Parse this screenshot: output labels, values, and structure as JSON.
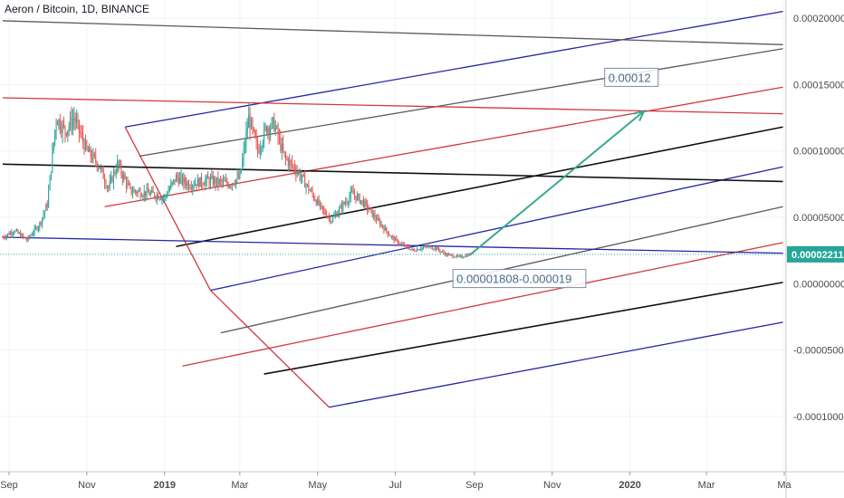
{
  "title": "Aeron / Bitcoin, 1D, BINANCE",
  "colors": {
    "up": "#26a69a",
    "down": "#ef5350",
    "price_tag": "#26a69a",
    "blue": "#2626a6",
    "red": "#d0393e",
    "gray": "#5a5a5a",
    "black": "#111111",
    "arrow": "#3aa88e"
  },
  "chart_data": {
    "type": "candlestick",
    "title": "Aeron / Bitcoin, 1D, BINANCE",
    "symbol": "Aeron / Bitcoin",
    "interval": "1D",
    "exchange": "BINANCE",
    "last_price": "0.00002211",
    "ylim": [
      -0.00012,
      0.00021
    ],
    "y_tick_labels": [
      "0.00020000",
      "0.00015000",
      "0.00010000",
      "0.00005000",
      "0.00000000",
      "-0.00005000",
      "-0.00010000"
    ],
    "y_ticks": [
      0.0002,
      0.00015,
      0.0001,
      5e-05,
      0.0,
      -5e-05,
      -0.0001
    ],
    "x_tick_labels": [
      "Sep",
      "Nov",
      "2019",
      "Mar",
      "May",
      "Jul",
      "Sep",
      "Nov",
      "2020",
      "Mar",
      "Ma"
    ],
    "x_ticks": [
      "2018-09-01",
      "2018-11-01",
      "2019-01-01",
      "2019-03-01",
      "2019-05-01",
      "2019-07-01",
      "2019-09-01",
      "2019-11-01",
      "2020-01-01",
      "2020-03-01",
      "2020-05-01"
    ],
    "price_path": [
      [
        "2018-08-27",
        3.5e-05
      ],
      [
        "2018-09-05",
        4e-05
      ],
      [
        "2018-09-15",
        3.3e-05
      ],
      [
        "2018-09-25",
        4.5e-05
      ],
      [
        "2018-10-01",
        6e-05
      ],
      [
        "2018-10-08",
        0.000125
      ],
      [
        "2018-10-15",
        0.000115
      ],
      [
        "2018-10-22",
        0.000125
      ],
      [
        "2018-11-01",
        0.0001
      ],
      [
        "2018-11-10",
        9e-05
      ],
      [
        "2018-11-18",
        7.2e-05
      ],
      [
        "2018-11-25",
        9e-05
      ],
      [
        "2018-12-05",
        7e-05
      ],
      [
        "2018-12-20",
        6.8e-05
      ],
      [
        "2019-01-01",
        6.5e-05
      ],
      [
        "2019-01-10",
        8e-05
      ],
      [
        "2019-01-20",
        7.5e-05
      ],
      [
        "2019-02-05",
        7.8e-05
      ],
      [
        "2019-02-20",
        7.5e-05
      ],
      [
        "2019-03-01",
        8e-05
      ],
      [
        "2019-03-08",
        0.000125
      ],
      [
        "2019-03-15",
        0.0001
      ],
      [
        "2019-03-22",
        0.000118
      ],
      [
        "2019-03-28",
        0.00012
      ],
      [
        "2019-04-05",
        9.5e-05
      ],
      [
        "2019-04-15",
        8.5e-05
      ],
      [
        "2019-04-25",
        7e-05
      ],
      [
        "2019-05-05",
        5.5e-05
      ],
      [
        "2019-05-12",
        4.8e-05
      ],
      [
        "2019-05-20",
        5.8e-05
      ],
      [
        "2019-05-28",
        6.8e-05
      ],
      [
        "2019-06-05",
        6.2e-05
      ],
      [
        "2019-06-15",
        5e-05
      ],
      [
        "2019-06-28",
        3.5e-05
      ],
      [
        "2019-07-05",
        3e-05
      ],
      [
        "2019-07-15",
        2.5e-05
      ],
      [
        "2019-07-25",
        2.8e-05
      ],
      [
        "2019-08-01",
        2.7e-05
      ],
      [
        "2019-08-10",
        2.2e-05
      ],
      [
        "2019-08-20",
        2e-05
      ],
      [
        "2019-08-29",
        2.21e-05
      ]
    ],
    "trend_lines": [
      {
        "name": "upper blue",
        "color": "blue",
        "from": [
          "2018-12-01",
          0.000118
        ],
        "to": [
          "2020-04-30",
          0.000205
        ]
      },
      {
        "name": "upper gray",
        "color": "gray",
        "from": [
          "2018-12-12",
          9.6e-05
        ],
        "to": [
          "2020-04-30",
          0.000177
        ]
      },
      {
        "name": "upper red",
        "color": "red",
        "from": [
          "2018-11-15",
          5.8e-05
        ],
        "to": [
          "2020-04-30",
          0.000148
        ]
      },
      {
        "name": "middle black",
        "color": "black",
        "from": [
          "2019-01-10",
          2.8e-05
        ],
        "to": [
          "2020-04-30",
          0.000118
        ]
      },
      {
        "name": "median blue",
        "color": "blue",
        "from": [
          "2019-02-06",
          -5e-06
        ],
        "to": [
          "2020-04-30",
          8.8e-05
        ]
      },
      {
        "name": "lower gray",
        "color": "gray",
        "from": [
          "2019-02-14",
          -3.7e-05
        ],
        "to": [
          "2020-04-30",
          5.8e-05
        ]
      },
      {
        "name": "lower red",
        "color": "red",
        "from": [
          "2019-01-15",
          -6.2e-05
        ],
        "to": [
          "2020-04-30",
          3.1e-05
        ]
      },
      {
        "name": "lower black",
        "color": "black",
        "from": [
          "2019-03-20",
          -6.8e-05
        ],
        "to": [
          "2020-04-30",
          1e-06
        ]
      },
      {
        "name": "lowest blue",
        "color": "blue",
        "from": [
          "2019-05-10",
          -9.3e-05
        ],
        "to": [
          "2020-04-30",
          -2.9e-05
        ]
      },
      {
        "name": "handle top",
        "color": "red",
        "from": [
          "2018-12-01",
          0.000118
        ],
        "to": [
          "2019-02-06",
          -5e-06
        ]
      },
      {
        "name": "handle bottom",
        "color": "red",
        "from": [
          "2019-02-06",
          -5e-06
        ],
        "to": [
          "2019-05-10",
          -9.3e-05
        ]
      },
      {
        "name": "horizontal dark gray",
        "color": "gray",
        "from": [
          "2018-08-27",
          0.000198
        ],
        "to": [
          "2020-04-30",
          0.00018
        ]
      },
      {
        "name": "horizontal red",
        "color": "red",
        "from": [
          "2018-08-27",
          0.00014
        ],
        "to": [
          "2020-04-30",
          0.000128
        ]
      },
      {
        "name": "horizontal black",
        "color": "black",
        "from": [
          "2018-08-27",
          9e-05
        ],
        "to": [
          "2020-04-30",
          7.7e-05
        ]
      },
      {
        "name": "horizontal blue",
        "color": "blue",
        "from": [
          "2018-08-27",
          3.5e-05
        ],
        "to": [
          "2020-04-30",
          2.3e-05
        ]
      }
    ],
    "arrow": {
      "from": [
        "2019-08-29",
        2.21e-05
      ],
      "to": [
        "2020-01-12",
        0.00013
      ]
    },
    "annotations": [
      {
        "text": "0.00012",
        "at": [
          "2019-12-15",
          0.000152
        ]
      },
      {
        "text": "0.00001808-0.000019",
        "at": [
          "2019-08-18",
          5e-07
        ]
      }
    ]
  }
}
